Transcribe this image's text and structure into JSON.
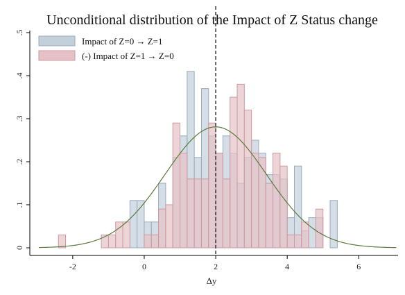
{
  "chart_data": {
    "type": "bar",
    "title": "Unconditional distribution of the Impact of Z Status change",
    "xlabel": "Δy",
    "ylabel": "",
    "xlim": [
      -3.2,
      7.1
    ],
    "ylim": [
      0,
      0.5
    ],
    "xticks": [
      -2,
      0,
      2,
      4,
      6
    ],
    "yticks": [
      0,
      0.1,
      0.2,
      0.3,
      0.4,
      0.5
    ],
    "ytick_labels": [
      "0",
      ".1",
      ".2",
      ".3",
      ".4",
      ".5"
    ],
    "bin_width": 0.2,
    "legend_position": "top-left",
    "reference_line": {
      "x": 2,
      "style": "dashed"
    },
    "colors": {
      "series1_fill": "#c3d0dc",
      "series1_stroke": "#98acbd",
      "series2_fill": "#e6c2c6",
      "series2_stroke": "#cc9aa0",
      "curve": "#5b7a3c",
      "refline": "#333333"
    },
    "series": [
      {
        "name": "Impact of Z=0 → Z=1",
        "bins": [
          [
            -0.3,
            0.11
          ],
          [
            -0.1,
            0.11
          ],
          [
            0.1,
            0.06
          ],
          [
            0.3,
            0.06
          ],
          [
            0.5,
            0.15
          ],
          [
            0.9,
            0.21
          ],
          [
            1.1,
            0.26
          ],
          [
            1.3,
            0.41
          ],
          [
            1.5,
            0.21
          ],
          [
            1.7,
            0.37
          ],
          [
            1.9,
            0.26
          ],
          [
            2.1,
            0.22
          ],
          [
            2.3,
            0.26
          ],
          [
            2.5,
            0.22
          ],
          [
            2.7,
            0.15
          ],
          [
            2.9,
            0.21
          ],
          [
            3.1,
            0.25
          ],
          [
            3.3,
            0.22
          ],
          [
            3.5,
            0.17
          ],
          [
            3.7,
            0.17
          ],
          [
            3.9,
            0.16
          ],
          [
            4.1,
            0.07
          ],
          [
            4.3,
            0.19
          ],
          [
            4.5,
            0.04
          ],
          [
            4.7,
            0.07
          ],
          [
            4.9,
            0.07
          ],
          [
            5.3,
            0.11
          ]
        ]
      },
      {
        "name": "(-) Impact of Z=1 → Z=0",
        "bins": [
          [
            -2.3,
            0.03
          ],
          [
            -1.1,
            0.03
          ],
          [
            -0.9,
            0.03
          ],
          [
            -0.7,
            0.06
          ],
          [
            -0.5,
            0.06
          ],
          [
            0.1,
            0.03
          ],
          [
            0.3,
            0.03
          ],
          [
            0.5,
            0.09
          ],
          [
            0.7,
            0.1
          ],
          [
            0.9,
            0.29
          ],
          [
            1.1,
            0.22
          ],
          [
            1.3,
            0.16
          ],
          [
            1.5,
            0.16
          ],
          [
            1.7,
            0.16
          ],
          [
            1.9,
            0.29
          ],
          [
            2.1,
            0.22
          ],
          [
            2.3,
            0.16
          ],
          [
            2.5,
            0.35
          ],
          [
            2.7,
            0.38
          ],
          [
            2.9,
            0.32
          ],
          [
            3.1,
            0.22
          ],
          [
            3.3,
            0.21
          ],
          [
            3.5,
            0.15
          ],
          [
            3.7,
            0.22
          ],
          [
            3.9,
            0.19
          ],
          [
            4.1,
            0.03
          ],
          [
            4.3,
            0.03
          ],
          [
            4.5,
            0.06
          ],
          [
            4.9,
            0.09
          ]
        ]
      }
    ],
    "normal_curve": {
      "mean": 2.0,
      "sd": 1.42,
      "peak": 0.281
    }
  }
}
